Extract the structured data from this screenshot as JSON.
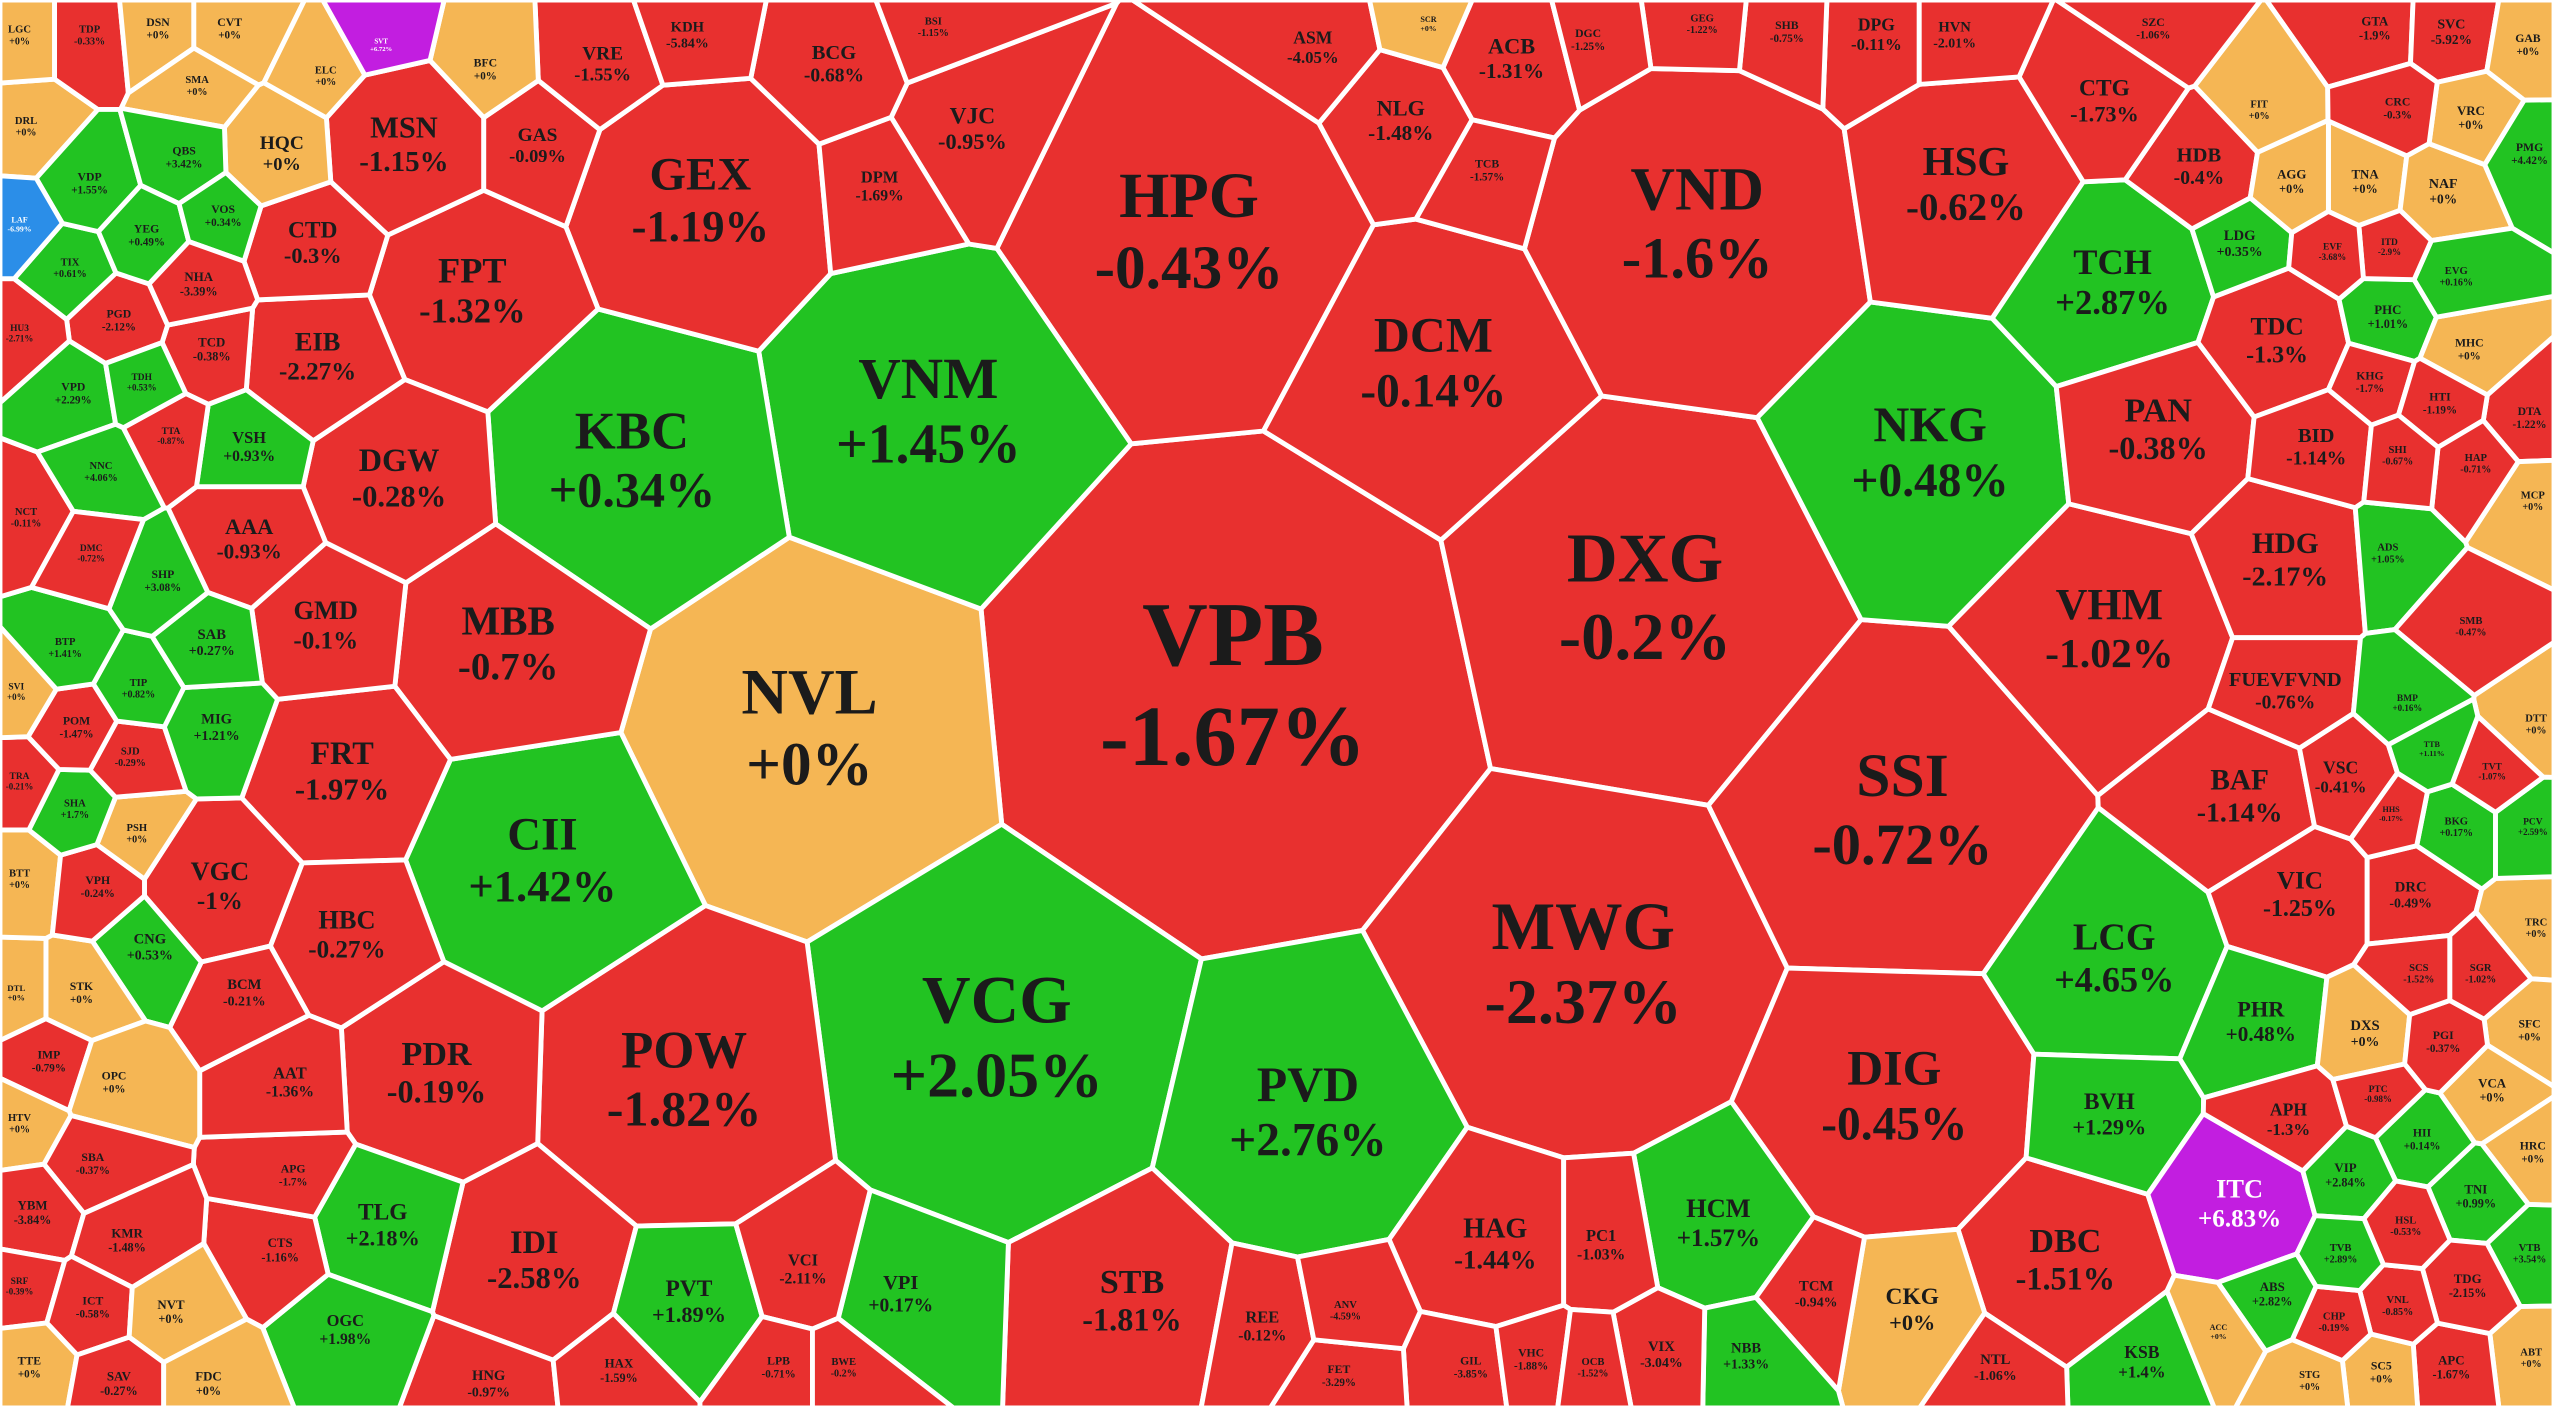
{
  "chart_data": {
    "type": "voronoi_treemap",
    "categories": [
      "VPB",
      "NVL",
      "DXG",
      "VND",
      "HPG",
      "MWG",
      "SSI",
      "VCG",
      "POW",
      "VNM",
      "KBC",
      "DCM",
      "GEX",
      "CII",
      "PVD",
      "DIG",
      "NKG",
      "HSG",
      "LCG",
      "TCH",
      "VHM",
      "MBB",
      "PAN",
      "STB",
      "DBC",
      "IDI",
      "FPT",
      "MSN",
      "PDR",
      "FRT",
      "DGW",
      "HAG",
      "HCM",
      "BVH",
      "ITC",
      "CKG",
      "PVT",
      "VPI",
      "TLG",
      "HBC",
      "VGC",
      "GMD",
      "EIB",
      "CTD",
      "AAA",
      "HQC",
      "GAS",
      "VJC",
      "DPM",
      "BCG",
      "NLG",
      "ACB",
      "TCB",
      "ASM",
      "VRE",
      "KDH",
      "HDG",
      "BAF",
      "VIC",
      "PHR",
      "APH",
      "DXS",
      "TDC",
      "BID",
      "HDB",
      "CTG",
      "DPG",
      "HVN",
      "VSC",
      "DRC",
      "FUEVFVND",
      "TNA",
      "AGG",
      "NAF",
      "GTA",
      "SVC",
      "GAB",
      "VRC",
      "CRC",
      "PMG",
      "FIT",
      "LDG",
      "PHC",
      "KHG",
      "MHC",
      "DTA",
      "HTI",
      "MCP",
      "DTT",
      "TRC",
      "SFC",
      "VCA",
      "HRC",
      "TNI",
      "HII",
      "VIP",
      "PGI",
      "SGR",
      "SCS",
      "VTB",
      "ABT",
      "APC",
      "TDG",
      "SC5",
      "VNL",
      "STG",
      "CHP",
      "HSL",
      "TVB",
      "ABS",
      "KSB",
      "NTL",
      "TCM",
      "NBB",
      "VIX",
      "PC1",
      "GIL",
      "FET",
      "REE",
      "ANV",
      "VCI",
      "HNG",
      "HAX",
      "LPB",
      "BWE",
      "OGC",
      "CTS",
      "APG",
      "AAT",
      "BCM",
      "CNG",
      "STK",
      "DTL",
      "IMP",
      "OPC",
      "HTV",
      "SBA",
      "YBM",
      "KMR",
      "SRF",
      "ICT",
      "NVT",
      "TTE",
      "SAV",
      "FDC",
      "BTT",
      "VPH",
      "PSH",
      "SHA",
      "TRA",
      "SJD",
      "POM",
      "SVI",
      "MIG",
      "TIP",
      "SAB",
      "BTP",
      "SHP",
      "NCT",
      "VSH",
      "TCD",
      "PGD",
      "HU3",
      "TIX",
      "DRL",
      "LGC",
      "TDP",
      "DSN",
      "CVT",
      "SMA",
      "VDP",
      "QBS",
      "YEG",
      "VOS",
      "NHA",
      "VPD",
      "BFC",
      "ELC",
      "NNC",
      "SVT",
      "LAF",
      "DMC",
      "TTA",
      "TDH",
      "SZC",
      "SHB",
      "GEG",
      "DGC",
      "SCR",
      "BSI",
      "VHC",
      "OCB",
      "EVG",
      "ADS",
      "SMB",
      "HAP",
      "SHI",
      "BKG",
      "PCV",
      "TVT",
      "ITD",
      "EVF",
      "BMP",
      "HHS",
      "TTB",
      "ACC",
      "PTC"
    ],
    "values": [
      -1.67,
      0,
      -0.2,
      -1.6,
      -0.43,
      -2.37,
      -0.72,
      2.05,
      -1.82,
      1.45,
      0.34,
      -0.14,
      -1.19,
      1.42,
      2.76,
      -0.45,
      0.48,
      -0.62,
      4.65,
      2.87,
      -1.02,
      -0.7,
      -0.38,
      -1.81,
      -1.51,
      -2.58,
      -1.32,
      -1.15,
      -0.19,
      -1.97,
      -0.28,
      -1.44,
      1.57,
      1.29,
      6.83,
      0,
      1.89,
      0.17,
      2.18,
      -0.27,
      -1,
      -0.1,
      -2.27,
      -0.3,
      -0.93,
      0,
      -0.09,
      -0.95,
      -1.69,
      -0.68,
      -1.48,
      -1.31,
      -1.57,
      -4.05,
      -1.55,
      -5.84,
      -2.17,
      -1.14,
      -1.25,
      0.48,
      -1.3,
      0,
      -1.3,
      -1.14,
      -0.4,
      -1.73,
      -0.11,
      -2.01,
      -0.41,
      -0.49,
      -0.76,
      0,
      0,
      0,
      -1.9,
      -5.92,
      0,
      0,
      -0.3,
      4.42,
      0,
      0.35,
      1.01,
      -1.7,
      0,
      -1.22,
      -1.19,
      0,
      0,
      0,
      0,
      0,
      0,
      0.99,
      0.14,
      2.84,
      -0.37,
      -1.02,
      -1.52,
      3.54,
      0,
      -1.67,
      -2.15,
      0,
      -0.85,
      0,
      -0.19,
      -0.53,
      2.89,
      2.82,
      1.4,
      -1.06,
      -0.94,
      1.33,
      -3.04,
      -1.03,
      -3.85,
      -3.29,
      -0.12,
      -4.59,
      -2.11,
      -0.97,
      -1.59,
      -0.71,
      -0.2,
      1.98,
      -1.16,
      -1.7,
      -1.36,
      -0.21,
      0.53,
      0,
      0,
      -0.79,
      0,
      0,
      -0.37,
      -3.84,
      -1.48,
      -0.39,
      -0.58,
      0,
      0,
      -0.27,
      0,
      0,
      -0.24,
      0,
      1.7,
      -0.21,
      -0.29,
      -1.47,
      0,
      1.21,
      0.82,
      0.27,
      1.41,
      3.08,
      -0.11,
      0.93,
      -0.38,
      -2.12,
      -2.71,
      0.61,
      0,
      0,
      -0.33,
      0,
      0,
      0,
      1.55,
      3.42,
      0.49,
      0.34,
      -3.39,
      2.29,
      0,
      0,
      4.06,
      6.72,
      -6.99,
      -0.72,
      -0.87,
      0.53,
      -1.06,
      -0.75,
      -1.22,
      -1.25,
      0,
      -1.15,
      -1.88,
      -1.52,
      0.16,
      1.05,
      -0.47,
      -0.71,
      -0.67,
      0.17,
      2.59,
      -1.07,
      -2.9,
      -3.68,
      0.16,
      -0.17,
      1.11,
      0,
      -0.98
    ],
    "value_labels": [
      "-1.67%",
      "+0%",
      "-0.2%",
      "-1.6%",
      "-0.43%",
      "-2.37%",
      "-0.72%",
      "+2.05%",
      "-1.82%",
      "+1.45%",
      "+0.34%",
      "-0.14%",
      "-1.19%",
      "+1.42%",
      "+2.76%",
      "-0.45%",
      "+0.48%",
      "-0.62%",
      "+4.65%",
      "+2.87%",
      "-1.02%",
      "-0.7%",
      "-0.38%",
      "-1.81%",
      "-1.51%",
      "-2.58%",
      "-1.32%",
      "-1.15%",
      "-0.19%",
      "-1.97%",
      "-0.28%",
      "-1.44%",
      "+1.57%",
      "+1.29%",
      "+6.83%",
      "+0%",
      "+1.89%",
      "+0.17%",
      "+2.18%",
      "-0.27%",
      "-1%",
      "-0.1%",
      "-2.27%",
      "-0.3%",
      "-0.93%",
      "+0%",
      "-0.09%",
      "-0.95%",
      "-1.69%",
      "-0.68%",
      "-1.48%",
      "-1.31%",
      "-1.57%",
      "-4.05%",
      "-1.55%",
      "-5.84%",
      "-2.17%",
      "-1.14%",
      "-1.25%",
      "+0.48%",
      "-1.3%",
      "+0%",
      "-1.3%",
      "-1.14%",
      "-0.4%",
      "-1.73%",
      "-0.11%",
      "-2.01%",
      "-0.41%",
      "-0.49%",
      "-0.76%",
      "+0%",
      "+0%",
      "+0%",
      "-1.9%",
      "-5.92%",
      "+0%",
      "+0%",
      "-0.3%",
      "+4.42%",
      "+0%",
      "+0.35%",
      "+1.01%",
      "-1.7%",
      "+0%",
      "-1.22%",
      "-1.19%",
      "+0%",
      "+0%",
      "+0%",
      "+0%",
      "+0%",
      "+0%",
      "+0.99%",
      "+0.14%",
      "+2.84%",
      "-0.37%",
      "-1.02%",
      "-1.52%",
      "+3.54%",
      "+0%",
      "-1.67%",
      "-2.15%",
      "+0%",
      "-0.85%",
      "+0%",
      "-0.19%",
      "-0.53%",
      "+2.89%",
      "+2.82%",
      "+1.4%",
      "-1.06%",
      "-0.94%",
      "+1.33%",
      "-3.04%",
      "-1.03%",
      "-3.85%",
      "-3.29%",
      "-0.12%",
      "-4.59%",
      "-2.11%",
      "-0.97%",
      "-1.59%",
      "-0.71%",
      "-0.2%",
      "+1.98%",
      "-1.16%",
      "-1.7%",
      "-1.36%",
      "-0.21%",
      "+0.53%",
      "+0%",
      "+0%",
      "-0.79%",
      "+0%",
      "+0%",
      "-0.37%",
      "-3.84%",
      "-1.48%",
      "-0.39%",
      "-0.58%",
      "+0%",
      "+0%",
      "-0.27%",
      "+0%",
      "+0%",
      "-0.24%",
      "+0%",
      "+1.7%",
      "-0.21%",
      "-0.29%",
      "-1.47%",
      "+0%",
      "+1.21%",
      "+0.82%",
      "+0.27%",
      "+1.41%",
      "+3.08%",
      "-0.11%",
      "+0.93%",
      "-0.38%",
      "-2.12%",
      "-2.71%",
      "+0.61%",
      "+0%",
      "+0%",
      "-0.33%",
      "+0%",
      "+0%",
      "+0%",
      "+1.55%",
      "+3.42%",
      "+0.49%",
      "+0.34%",
      "-3.39%",
      "+2.29%",
      "+0%",
      "+0%",
      "+4.06%",
      "+6.72%",
      "-6.99%",
      "-0.72%",
      "-0.87%",
      "+0.53%",
      "-1.06%",
      "-0.75%",
      "-1.22%",
      "-1.25%",
      "+0%",
      "-1.15%",
      "-1.88%",
      "-1.52%",
      "+0.16%",
      "+1.05%",
      "-0.47%",
      "-0.71%",
      "-0.67%",
      "+0.17%",
      "+2.59%",
      "-1.07%",
      "-2.9%",
      "-3.68%",
      "+0.16%",
      "-0.17%",
      "+1.11%",
      "+0%",
      "-0.98%"
    ],
    "colors": {
      "up": "#22c322",
      "down": "#e8302f",
      "flat": "#f5b654",
      "ceiling": "#c21ee0",
      "floor": "#2b8ee8"
    }
  }
}
